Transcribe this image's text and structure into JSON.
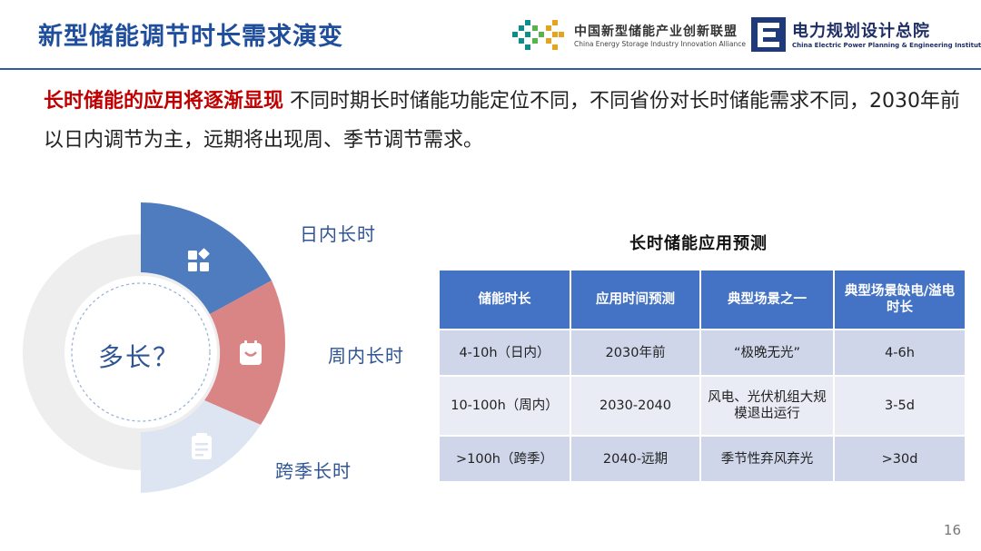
{
  "header": {
    "title": "新型储能调节时长需求演变",
    "logo_cnesa": {
      "cn": "中国新型储能产业创新联盟",
      "en": "China Energy Storage Industry Innovation Alliance"
    },
    "logo_eppei": {
      "cn": "电力规划设计总院",
      "en": "China Electric Power Planning & Engineering Institute"
    },
    "colors": {
      "title": "#1f4e9c",
      "rule": "#2e5aa8"
    }
  },
  "intro": {
    "highlight": "长时储能的应用将逐渐显现",
    "text": " 不同时期长时储能功能定位不同，不同省份对长时储能需求不同，2030年前以日内调节为主，远期将出现周、季节调节需求。",
    "highlight_color": "#c00000"
  },
  "diagram": {
    "center_label": "多长？",
    "segments": [
      {
        "label": "日内长时",
        "icon": "apps-icon",
        "color": "#4f7cbe"
      },
      {
        "label": "周内长时",
        "icon": "calendar-icon",
        "color": "#d98586"
      },
      {
        "label": "跨季长时",
        "icon": "clipboard-icon",
        "color": "#dde5f2"
      }
    ]
  },
  "table": {
    "title": "长时储能应用预测",
    "headers": [
      "储能时长",
      "应用时间预测",
      "典型场景之一",
      "典型场景缺电/溢电时长"
    ],
    "rows": [
      [
        "4-10h（日内）",
        "2030年前",
        "“极晚无光”",
        "4-6h"
      ],
      [
        "10-100h（周内）",
        "2030-2040",
        "风电、光伏机组大规模退出运行",
        "3-5d"
      ],
      [
        ">100h（跨季）",
        "2040-远期",
        "季节性弃风弃光",
        ">30d"
      ]
    ],
    "colors": {
      "header_bg": "#4472c4",
      "row_dark": "#cfd6ea",
      "row_light": "#e9ecf5"
    }
  },
  "page_number": "16"
}
